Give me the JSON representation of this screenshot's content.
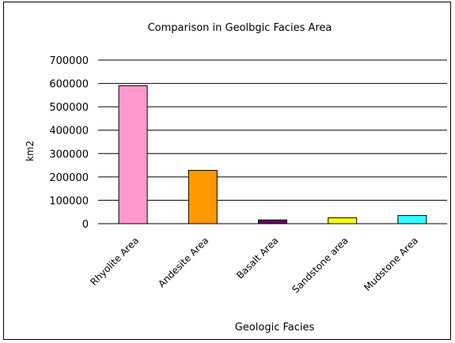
{
  "chart_data": {
    "type": "bar",
    "title": "Comparison in Geolbgic Facies Area",
    "xlabel": "Geologic Facies",
    "ylabel": "km2",
    "ylim": [
      0,
      700000
    ],
    "yticks": [
      0,
      100000,
      200000,
      300000,
      400000,
      500000,
      600000,
      700000
    ],
    "grid": true,
    "categories": [
      "Rhyolite Area",
      "Andesite Area",
      "Basalt Area",
      "Sandstone area",
      "Mudstone Area"
    ],
    "values": [
      590000,
      228000,
      16000,
      25000,
      35000
    ],
    "colors": [
      "#ff99cc",
      "#ff9900",
      "#660066",
      "#ffff00",
      "#33ffff"
    ]
  }
}
